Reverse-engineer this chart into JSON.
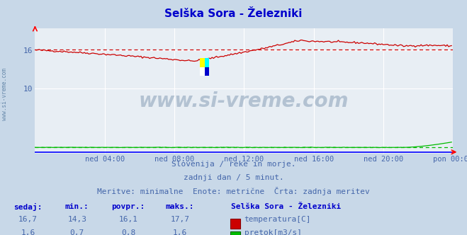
{
  "title": "Selška Sora - Železniki",
  "bg_color": "#c8d8e8",
  "plot_bg_color": "#e8eef4",
  "grid_color": "#ffffff",
  "title_color": "#0000cc",
  "axis_label_color": "#4466aa",
  "text_color": "#4466aa",
  "xlabel_ticks": [
    "ned 04:00",
    "ned 08:00",
    "ned 12:00",
    "ned 16:00",
    "ned 20:00",
    "pon 00:00"
  ],
  "yticks": [
    10,
    16
  ],
  "ylim": [
    -0.3,
    19.5
  ],
  "xlim": [
    0,
    288
  ],
  "temp_color": "#cc0000",
  "flow_color": "#00bb00",
  "avg_temp_color": "#cc0000",
  "avg_flow_color": "#00bb00",
  "watermark": "www.si-vreme.com",
  "watermark_color": "#aabbcc",
  "left_label": "www.si-vreme.com",
  "subtitle1": "Slovenija / reke in morje.",
  "subtitle2": "zadnji dan / 5 minut.",
  "subtitle3": "Meritve: minimalne  Enote: metrične  Črta: zadnja meritev",
  "legend_title": "Selška Sora - Železniki",
  "stats_headers": [
    "sedaj:",
    "min.:",
    "povpr.:",
    "maks.:"
  ],
  "stats_temp": [
    "16,7",
    "14,3",
    "16,1",
    "17,7"
  ],
  "stats_flow": [
    "1,6",
    "0,7",
    "0,8",
    "1,6"
  ],
  "label_temp": "temperatura[C]",
  "label_flow": "pretok[m3/s]",
  "avg_temp": 16.1,
  "avg_flow": 0.8,
  "min_temp": 14.3,
  "max_temp": 17.7,
  "min_flow": 0.7,
  "max_flow": 1.6
}
